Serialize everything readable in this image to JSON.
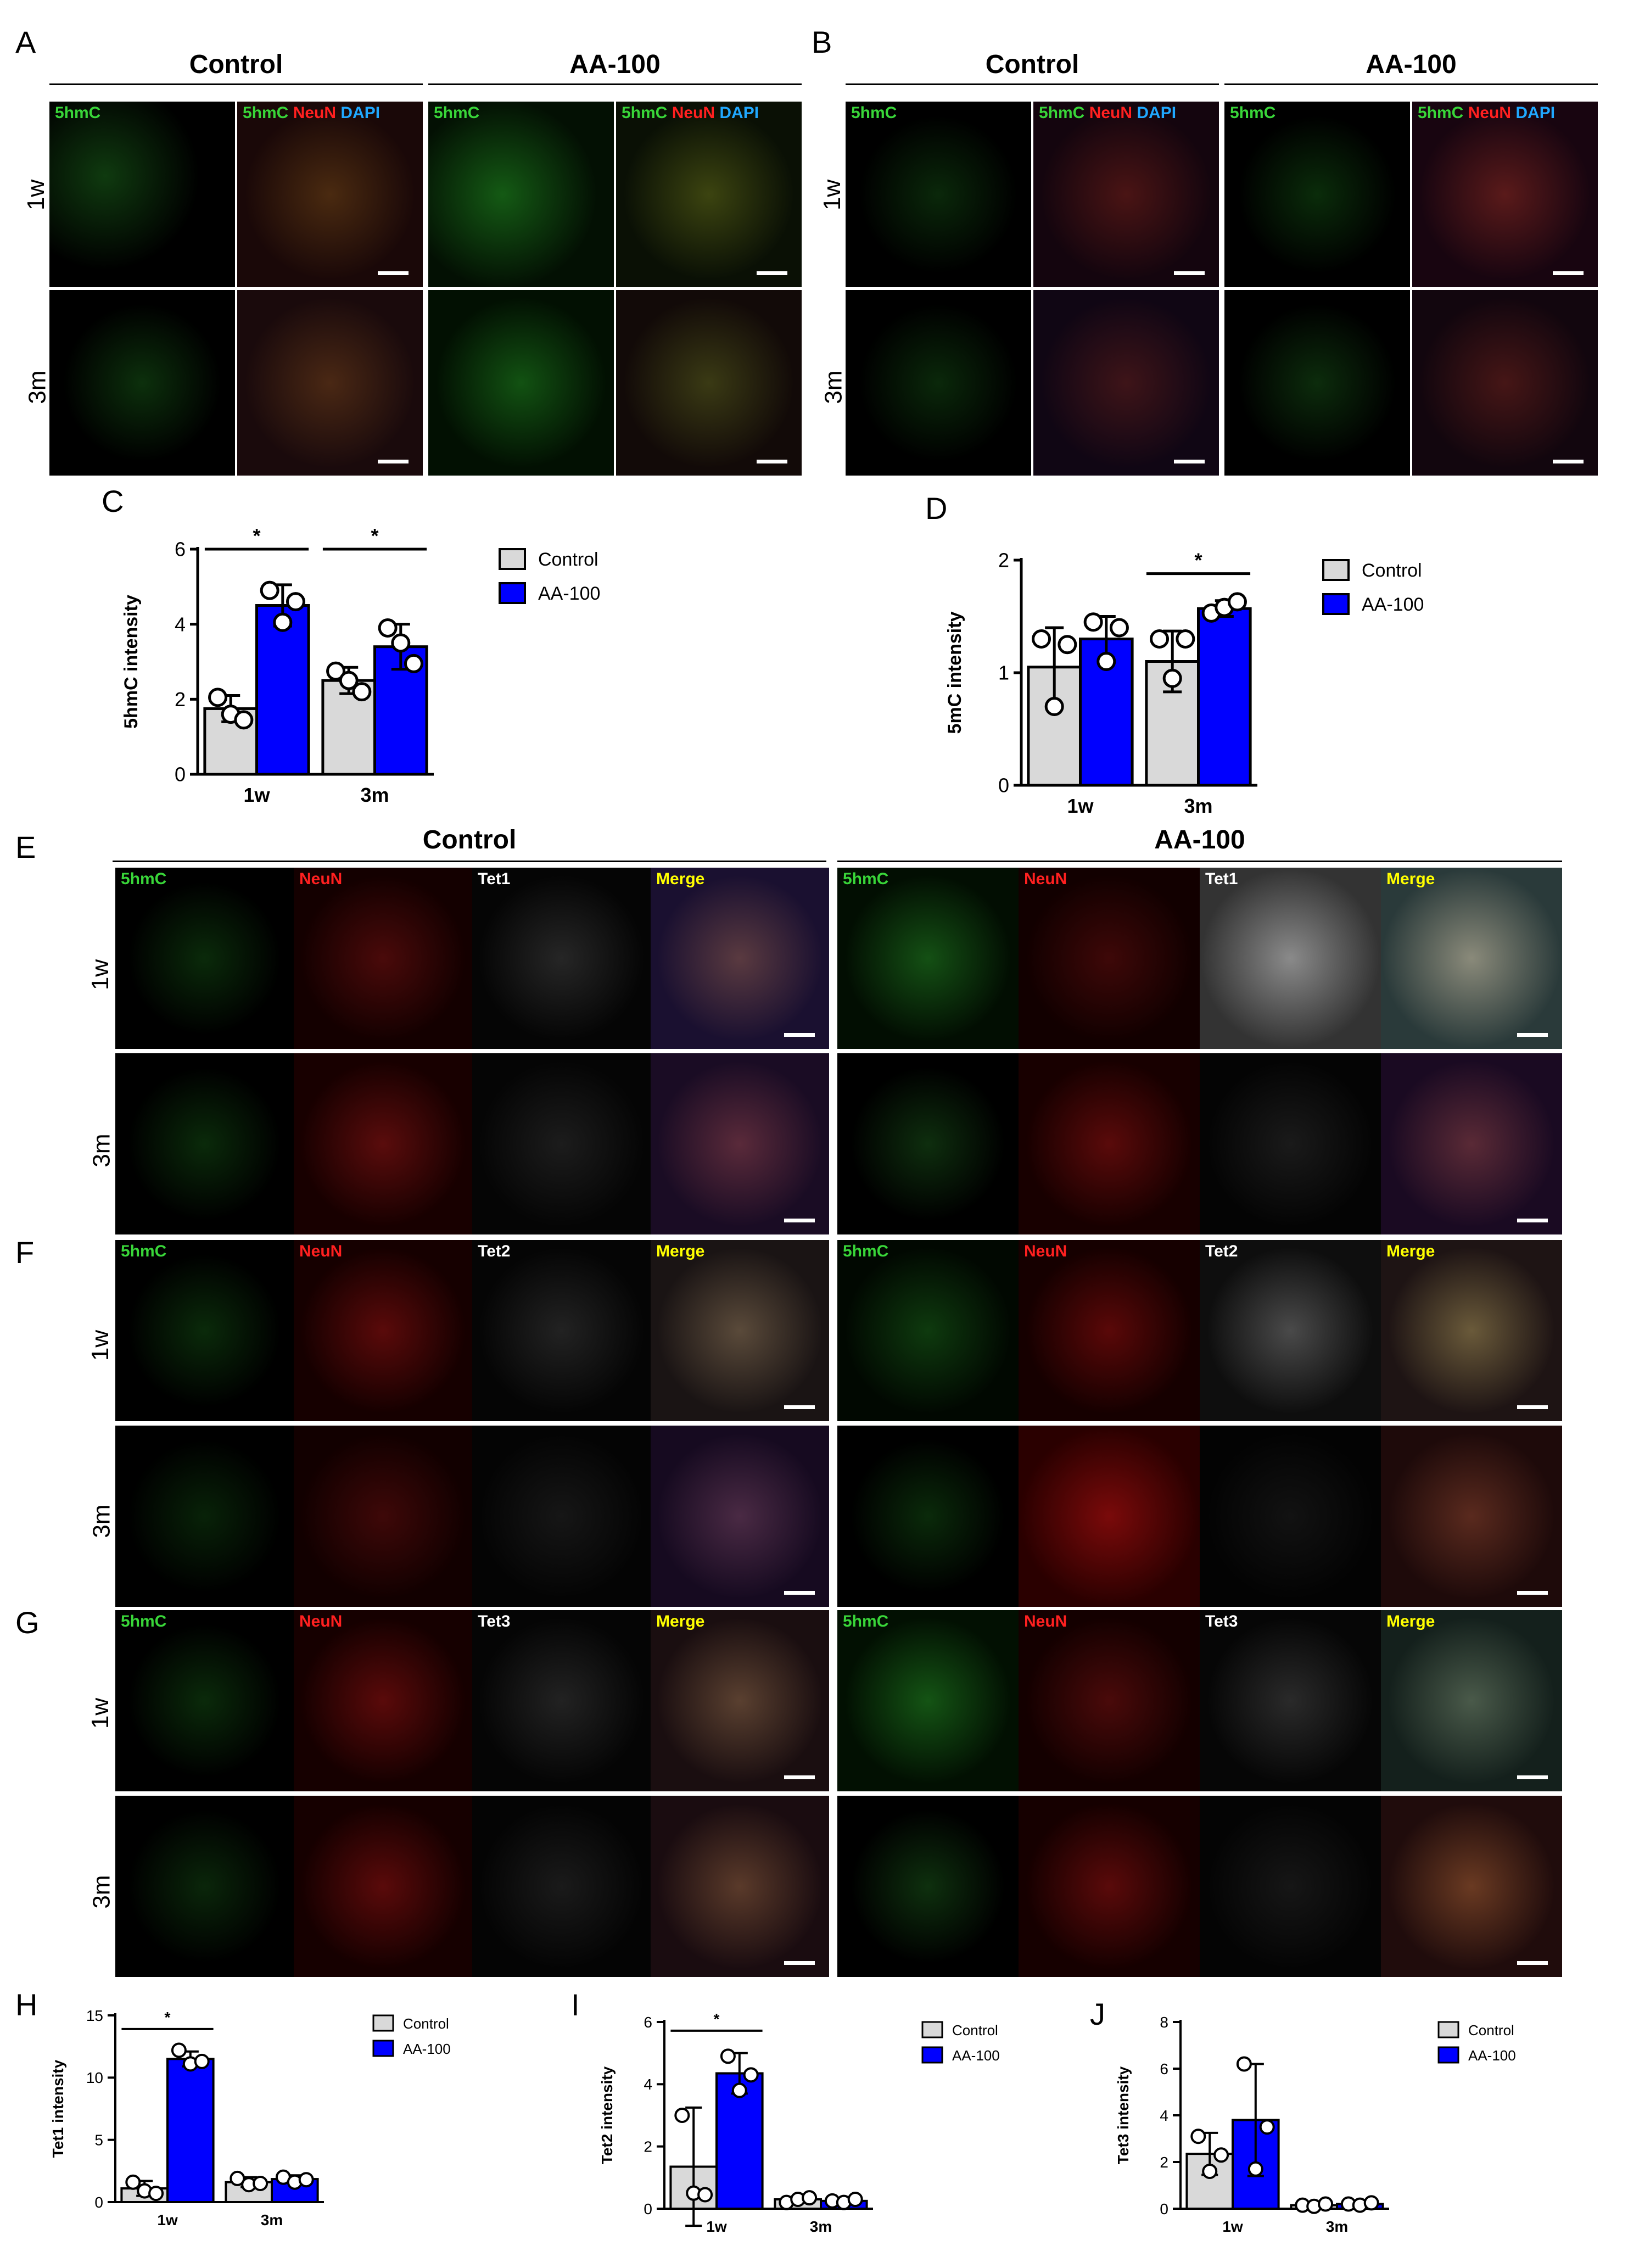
{
  "panel_letters": {
    "A": "A",
    "B": "B",
    "C": "C",
    "D": "D",
    "E": "E",
    "F": "F",
    "G": "G",
    "H": "H",
    "I": "I",
    "J": "J"
  },
  "groups": {
    "control": "Control",
    "aa100": "AA-100"
  },
  "timepoints": {
    "w1": "1w",
    "m3": "3m"
  },
  "stain_labels": {
    "hmc": "5hmC",
    "neun": "NeuN",
    "dapi": "DAPI",
    "tet1": "Tet1",
    "tet2": "Tet2",
    "tet3": "Tet3",
    "merge": "Merge"
  },
  "colors": {
    "hmc": "#39d639",
    "neun": "#ff2020",
    "dapi": "#20a8ff",
    "tet": "#ffffff",
    "merge": "#ffff00",
    "control_bar": "#d9d9d9",
    "aa100_bar": "#0000ff"
  },
  "chart_data": [
    {
      "id": "C",
      "type": "bar",
      "categories": [
        "1w",
        "3m"
      ],
      "ylabel": "5hmC intensity",
      "ylim": [
        0,
        6
      ],
      "yticks": [
        0,
        2,
        4,
        6
      ],
      "series": [
        {
          "name": "Control",
          "values": [
            1.75,
            2.5
          ],
          "sd": [
            0.35,
            0.35
          ],
          "points": [
            [
              2.05,
              1.6,
              1.45
            ],
            [
              2.75,
              2.5,
              2.2
            ]
          ]
        },
        {
          "name": "AA-100",
          "values": [
            4.5,
            3.4
          ],
          "sd": [
            0.55,
            0.6
          ],
          "points": [
            [
              4.9,
              4.05,
              4.6
            ],
            [
              3.9,
              3.5,
              2.95
            ]
          ]
        }
      ],
      "sig": [
        {
          "cat": 0,
          "text": "*"
        },
        {
          "cat": 1,
          "text": "*"
        }
      ]
    },
    {
      "id": "D",
      "type": "bar",
      "categories": [
        "1w",
        "3m"
      ],
      "ylabel": "5mC intensity",
      "ylim": [
        0,
        2
      ],
      "yticks": [
        0,
        1,
        2
      ],
      "series": [
        {
          "name": "Control",
          "values": [
            1.05,
            1.1
          ],
          "sd": [
            0.35,
            0.27
          ],
          "points": [
            [
              1.3,
              0.7,
              1.25
            ],
            [
              1.3,
              0.95,
              1.3
            ]
          ]
        },
        {
          "name": "AA-100",
          "values": [
            1.3,
            1.57
          ],
          "sd": [
            0.2,
            0.07
          ],
          "points": [
            [
              1.45,
              1.1,
              1.4
            ],
            [
              1.53,
              1.58,
              1.63
            ]
          ]
        }
      ],
      "sig": [
        {
          "cat": 1,
          "text": "*"
        }
      ]
    },
    {
      "id": "H",
      "type": "bar",
      "categories": [
        "1w",
        "3m"
      ],
      "ylabel": "Tet1 intensity",
      "ylim": [
        0,
        15
      ],
      "yticks": [
        0,
        5,
        10,
        15
      ],
      "series": [
        {
          "name": "Control",
          "values": [
            1.1,
            1.6
          ],
          "sd": [
            0.6,
            0.4
          ],
          "points": [
            [
              1.6,
              0.9,
              0.7
            ],
            [
              1.9,
              1.4,
              1.5
            ]
          ]
        },
        {
          "name": "AA-100",
          "values": [
            11.5,
            1.85
          ],
          "sd": [
            0.6,
            0.3
          ],
          "points": [
            [
              12.2,
              11.1,
              11.3
            ],
            [
              2.0,
              1.6,
              1.8
            ]
          ]
        }
      ],
      "sig": [
        {
          "cat": 0,
          "text": "*"
        }
      ]
    },
    {
      "id": "I",
      "type": "bar",
      "categories": [
        "1w",
        "3m"
      ],
      "ylabel": "Tet2 intensity",
      "ylim": [
        0,
        6
      ],
      "yticks": [
        0,
        2,
        4,
        6
      ],
      "series": [
        {
          "name": "Control",
          "values": [
            1.35,
            0.3
          ],
          "sd": [
            1.9,
            0.08
          ],
          "points": [
            [
              3.0,
              0.5,
              0.45
            ],
            [
              0.2,
              0.3,
              0.35
            ]
          ]
        },
        {
          "name": "AA-100",
          "values": [
            4.35,
            0.25
          ],
          "sd": [
            0.65,
            0.05
          ],
          "points": [
            [
              4.9,
              3.8,
              4.3
            ],
            [
              0.25,
              0.2,
              0.3
            ]
          ]
        }
      ],
      "sig": [
        {
          "cat": 0,
          "text": "*"
        }
      ]
    },
    {
      "id": "J",
      "type": "bar",
      "categories": [
        "1w",
        "3m"
      ],
      "ylabel": "Tet3 intensity",
      "ylim": [
        0,
        8
      ],
      "yticks": [
        0,
        2,
        4,
        6,
        8
      ],
      "series": [
        {
          "name": "Control",
          "values": [
            2.35,
            0.15
          ],
          "sd": [
            0.9,
            0.05
          ],
          "points": [
            [
              3.1,
              1.6,
              2.3
            ],
            [
              0.15,
              0.1,
              0.2
            ]
          ]
        },
        {
          "name": "AA-100",
          "values": [
            3.8,
            0.2
          ],
          "sd": [
            2.4,
            0.05
          ],
          "points": [
            [
              6.2,
              1.7,
              3.5
            ],
            [
              0.2,
              0.15,
              0.25
            ]
          ]
        }
      ],
      "sig": []
    }
  ]
}
